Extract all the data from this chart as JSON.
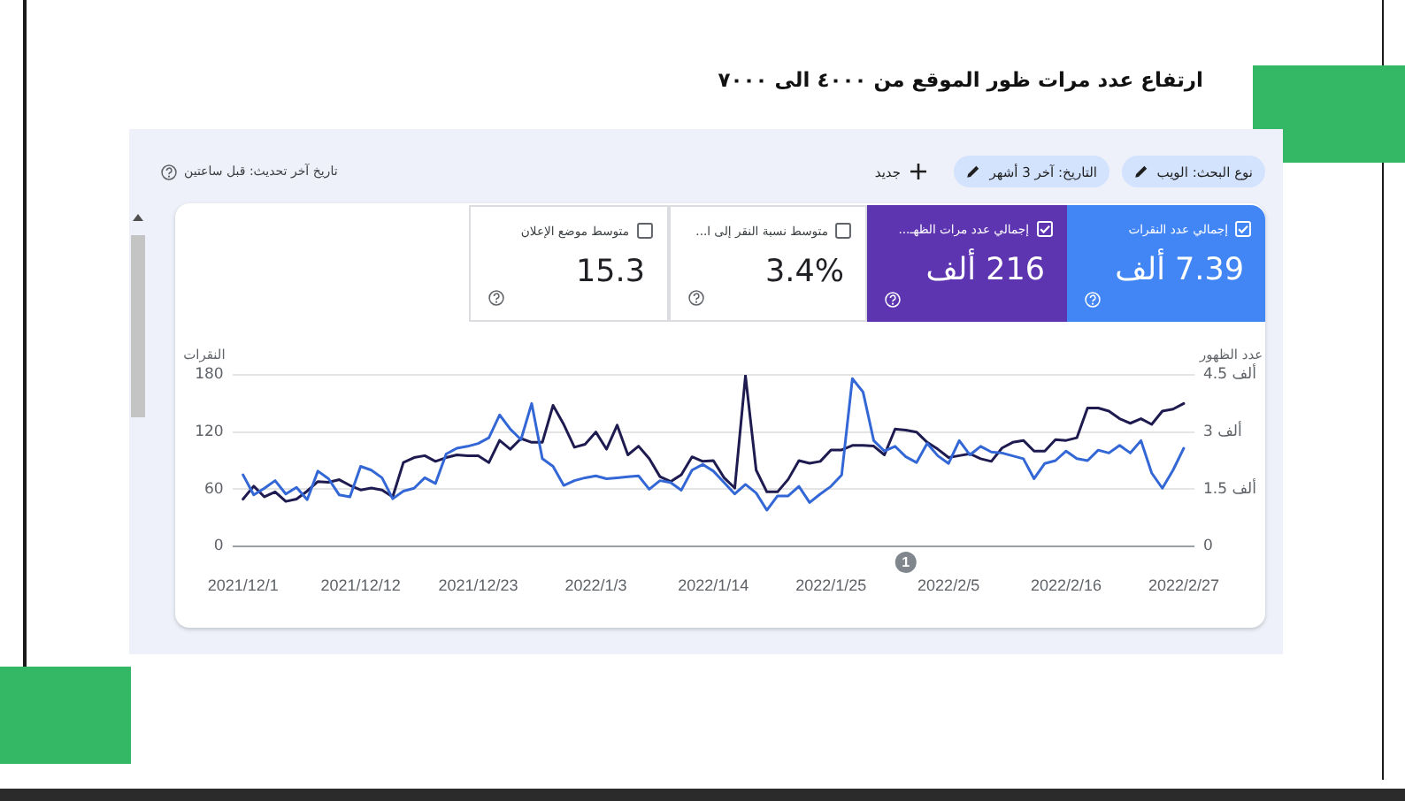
{
  "chart_data": [
    {
      "type": "other",
      "title": "ارتفاع عدد مرات ظور الموقع من ٤٠٠٠ الى ٧٠٠٠",
      "annotations": [
        "نوع البحث: الويب",
        "التاريخ: آخر 3 أشهر",
        "جديد",
        "تاريخ آخر تحديث: قبل ساعتين",
        "إجمالي عدد النقرات",
        "7.39 ألف",
        "إجمالي عدد مرات الظهـ...",
        "216 ألف",
        "متوسط نسبة النقر إلى ا...",
        "3.4%",
        "متوسط موضع الإعلان",
        "15.3"
      ],
      "colors": [
        "#4285f4",
        "#5e35b1",
        "#ffffff",
        "#ffffff"
      ]
    },
    {
      "type": "line",
      "x": [
        "2021-12-01",
        "2021-12-02",
        "2021-12-03",
        "2021-12-04",
        "2021-12-05",
        "2021-12-06",
        "2021-12-07",
        "2021-12-08",
        "2021-12-09",
        "2021-12-10",
        "2021-12-11",
        "2021-12-12",
        "2021-12-13",
        "2021-12-14",
        "2021-12-15",
        "2021-12-16",
        "2021-12-17",
        "2021-12-18",
        "2021-12-19",
        "2021-12-20",
        "2021-12-21",
        "2021-12-22",
        "2021-12-23",
        "2021-12-24",
        "2021-12-25",
        "2021-12-26",
        "2021-12-27",
        "2021-12-28",
        "2021-12-29",
        "2021-12-30",
        "2021-12-31",
        "2022-01-01",
        "2022-01-02",
        "2022-01-03",
        "2022-01-04",
        "2022-01-05",
        "2022-01-06",
        "2022-01-07",
        "2022-01-08",
        "2022-01-09",
        "2022-01-10",
        "2022-01-11",
        "2022-01-12",
        "2022-01-13",
        "2022-01-14",
        "2022-01-15",
        "2022-01-16",
        "2022-01-17",
        "2022-01-18",
        "2022-01-19",
        "2022-01-20",
        "2022-01-21",
        "2022-01-22",
        "2022-01-23",
        "2022-01-24",
        "2022-01-25",
        "2022-01-26",
        "2022-01-27",
        "2022-01-28",
        "2022-01-29",
        "2022-01-30",
        "2022-01-31",
        "2022-02-01",
        "2022-02-02",
        "2022-02-03",
        "2022-02-04",
        "2022-02-05",
        "2022-02-06",
        "2022-02-07",
        "2022-02-08",
        "2022-02-09",
        "2022-02-10",
        "2022-02-11",
        "2022-02-12",
        "2022-02-13",
        "2022-02-14",
        "2022-02-15",
        "2022-02-16",
        "2022-02-17",
        "2022-02-18",
        "2022-02-19",
        "2022-02-20",
        "2022-02-21",
        "2022-02-22",
        "2022-02-23",
        "2022-02-24",
        "2022-02-25",
        "2022-02-26",
        "2022-02-27"
      ],
      "xlim": [
        "2021-11-30",
        "2022-02-28"
      ],
      "xticks": [
        {
          "value": "2021-12-01",
          "label": "2021/12/1"
        },
        {
          "value": "2021-12-12",
          "label": "2021/12/12"
        },
        {
          "value": "2021-12-23",
          "label": "2021/12/23"
        },
        {
          "value": "2022-01-03",
          "label": "2022/1/3"
        },
        {
          "value": "2022-01-14",
          "label": "2022/1/14"
        },
        {
          "value": "2022-01-25",
          "label": "2022/1/25"
        },
        {
          "value": "2022-02-05",
          "label": "2022/2/5"
        },
        {
          "value": "2022-02-16",
          "label": "2022/2/16"
        },
        {
          "value": "2022-02-27",
          "label": "2022/2/27"
        }
      ],
      "ylabel": "النقرات",
      "y2label": "عدد الظهور",
      "ylim": [
        0,
        180
      ],
      "yticks": [
        0,
        60,
        120,
        180
      ],
      "y2lim": [
        0,
        4.5
      ],
      "y2ticks": [
        0,
        {
          "value": 1.5,
          "label": "1.5 ألف"
        },
        {
          "value": 3,
          "label": "3 ألف"
        },
        {
          "value": 4.5,
          "label": "4.5 ألف"
        }
      ],
      "grid": "y",
      "series": [
        {
          "color": "#3367d6",
          "values": [
            75,
            54,
            61,
            69,
            55,
            62,
            49,
            79,
            71,
            54,
            52,
            84,
            80,
            72,
            50,
            58,
            61,
            72,
            66,
            97,
            103,
            105,
            108,
            114,
            138,
            123,
            112,
            150,
            92,
            84,
            64,
            69,
            72,
            74,
            71,
            72,
            73,
            74,
            60,
            69,
            67,
            59,
            80,
            86,
            79,
            67,
            55,
            65,
            56,
            38,
            53,
            53,
            63,
            46,
            55,
            63,
            75,
            176,
            162,
            111,
            100,
            105,
            94,
            88,
            108,
            95,
            87,
            111,
            96,
            105,
            99,
            98,
            95,
            92,
            71,
            87,
            90,
            100,
            92,
            90,
            101,
            98,
            106,
            98,
            111,
            77,
            61,
            80,
            103
          ]
        },
        {
          "color": "#1e1b50",
          "axis": "y2",
          "values": [
            1.24,
            1.58,
            1.3,
            1.43,
            1.18,
            1.24,
            1.45,
            1.7,
            1.68,
            1.75,
            1.6,
            1.48,
            1.53,
            1.48,
            1.3,
            2.2,
            2.33,
            2.38,
            2.23,
            2.33,
            2.4,
            2.38,
            2.38,
            2.2,
            2.78,
            2.55,
            2.83,
            2.73,
            2.73,
            3.7,
            3.2,
            2.6,
            2.68,
            3,
            2.55,
            3.18,
            2.4,
            2.63,
            2.3,
            1.83,
            1.7,
            1.88,
            2.35,
            2.23,
            2.25,
            1.8,
            1.53,
            4.48,
            2,
            1.43,
            1.43,
            1.76,
            2.25,
            2.18,
            2.23,
            2.53,
            2.53,
            2.65,
            2.65,
            2.63,
            2.4,
            3.08,
            3.05,
            3,
            2.73,
            2.55,
            2.33,
            2.38,
            2.43,
            2.3,
            2.23,
            2.58,
            2.73,
            2.78,
            2.5,
            2.5,
            2.8,
            2.78,
            2.85,
            3.63,
            3.63,
            3.55,
            3.35,
            3.23,
            3.35,
            3.2,
            3.55,
            3.6,
            3.75
          ]
        }
      ],
      "annotations": [
        "1"
      ]
    }
  ]
}
